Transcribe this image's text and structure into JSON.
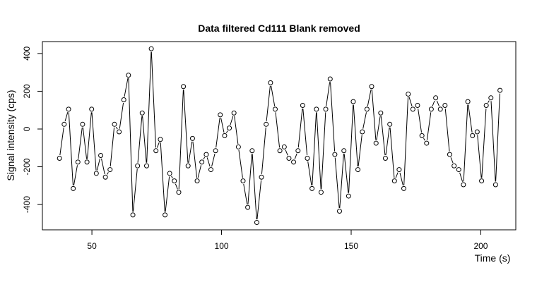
{
  "chart_data": {
    "type": "line",
    "title": "Data filtered Cd111 Blank removed",
    "x_label": "Time (s)",
    "y_label": "Signal intensity (cps)",
    "x": [
      37.5,
      39.3,
      41.0,
      42.8,
      44.6,
      46.4,
      48.1,
      49.9,
      51.7,
      53.4,
      55.2,
      57.0,
      58.7,
      60.5,
      62.3,
      64.1,
      65.8,
      67.6,
      69.4,
      71.1,
      72.9,
      74.7,
      76.4,
      78.2,
      80.0,
      81.8,
      83.5,
      85.3,
      87.1,
      88.8,
      90.6,
      92.4,
      94.1,
      95.9,
      97.7,
      99.5,
      101.2,
      103.0,
      104.8,
      106.5,
      108.3,
      110.1,
      111.8,
      113.6,
      115.4,
      117.2,
      118.9,
      120.7,
      122.5,
      124.2,
      126.0,
      127.8,
      129.5,
      131.3,
      133.1,
      134.9,
      136.6,
      138.4,
      140.2,
      141.9,
      143.7,
      145.5,
      147.2,
      149.0,
      150.8,
      152.6,
      154.3,
      156.1,
      157.9,
      159.6,
      161.4,
      163.2,
      164.9,
      166.7,
      168.5,
      170.3,
      172.0,
      173.8,
      175.6,
      177.3,
      179.1,
      180.9,
      182.6,
      184.4,
      186.2,
      188.0,
      189.7,
      191.5,
      193.3,
      195.0,
      196.8,
      198.6,
      200.3,
      202.1,
      203.9,
      205.7,
      207.4
    ],
    "series": [
      {
        "color": "#000000",
        "values": [
          -155,
          25,
          105,
          -315,
          -175,
          25,
          -175,
          105,
          -235,
          -140,
          -255,
          -215,
          25,
          -15,
          155,
          285,
          -455,
          -195,
          85,
          -195,
          425,
          -115,
          -55,
          -455,
          -235,
          -275,
          -335,
          225,
          -195,
          -50,
          -275,
          -175,
          -135,
          -215,
          -115,
          75,
          -35,
          5,
          85,
          -95,
          -275,
          -415,
          -115,
          -495,
          -255,
          25,
          245,
          105,
          -115,
          -95,
          -155,
          -175,
          -115,
          125,
          -155,
          -315,
          105,
          -335,
          105,
          265,
          -135,
          -435,
          -115,
          -355,
          145,
          -215,
          -15,
          105,
          225,
          -75,
          85,
          -155,
          25,
          -275,
          -215,
          -315,
          185,
          105,
          125,
          -35,
          -75,
          105,
          165,
          105,
          125,
          -135,
          -195,
          -215,
          -295,
          145,
          -35,
          -15,
          -275,
          125,
          165,
          -295,
          205
        ]
      }
    ],
    "xlim": [
      30.9,
      213.5
    ],
    "ylim": [
      -534,
      463
    ],
    "xticks": [
      50,
      100,
      150,
      200
    ],
    "yticks": [
      -400,
      -200,
      0,
      200,
      400
    ],
    "grid": false
  }
}
